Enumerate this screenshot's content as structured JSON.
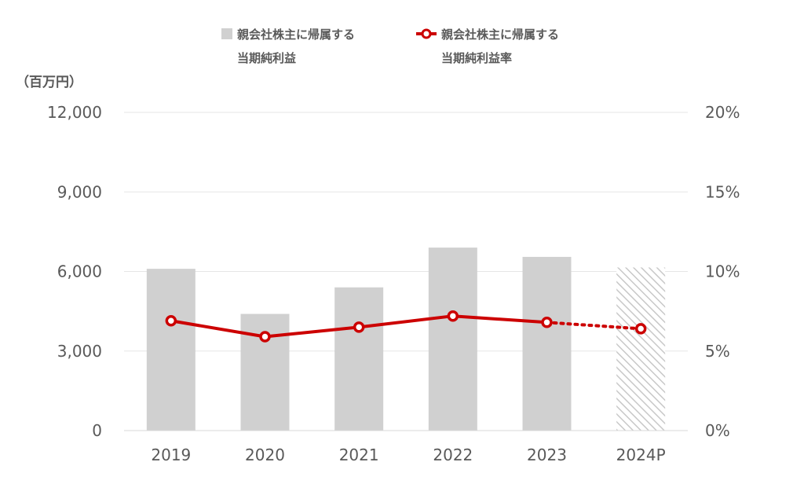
{
  "chart_data": {
    "type": "bar",
    "categories": [
      "2019",
      "2020",
      "2021",
      "2022",
      "2023",
      "2024P"
    ],
    "y_left": {
      "unit_label": "（百万円）",
      "range": [
        0,
        12000
      ],
      "ticks": [
        "0",
        "3,000",
        "6,000",
        "9,000",
        "12,000"
      ]
    },
    "y_right": {
      "range": [
        0,
        20
      ],
      "ticks": [
        "0%",
        "5%",
        "10%",
        "15%",
        "20%"
      ]
    },
    "series": [
      {
        "name_lines": [
          "親会社株主に帰属する",
          "当期純利益"
        ],
        "type": "bar",
        "axis": "left",
        "values": [
          6100,
          4400,
          5400,
          6900,
          6550,
          6150
        ],
        "forecast_from_index": 5,
        "color": "#d0d0d0"
      },
      {
        "name_lines": [
          "親会社株主に帰属する",
          "当期純利益率"
        ],
        "type": "line",
        "axis": "right",
        "values": [
          6.9,
          5.9,
          6.5,
          7.2,
          6.8,
          6.4
        ],
        "forecast_from_index": 5,
        "color": "#cc0000"
      }
    ],
    "grid": true,
    "legend_position": "top"
  }
}
